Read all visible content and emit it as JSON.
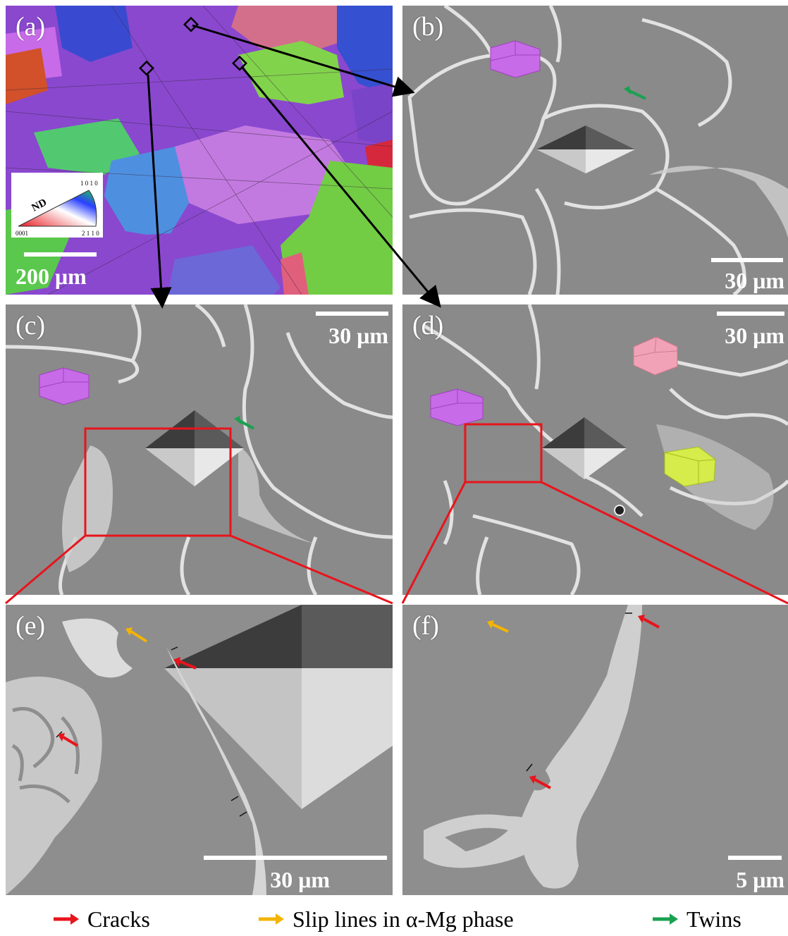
{
  "panels": {
    "a": {
      "label": "(a)",
      "scale": "200 μm"
    },
    "b": {
      "label": "(b)",
      "scale": "30 μm"
    },
    "c": {
      "label": "(c)",
      "scale": "30 μm"
    },
    "d": {
      "label": "(d)",
      "scale": "30 μm"
    },
    "e": {
      "label": "(e)",
      "scale": "30 μm"
    },
    "f": {
      "label": "(f)",
      "scale": "5 μm"
    }
  },
  "ipf_key": {
    "title": "ND",
    "corner_0001": "0001",
    "corner_2110": "2 1 1 0",
    "corner_1010": "1 0 1 0"
  },
  "legend": [
    {
      "label": "Cracks",
      "color": "#e8141c"
    },
    {
      "label": "Slip lines in α-Mg phase",
      "color": "#f4b400"
    },
    {
      "label": "Twins",
      "color": "#1aa150"
    }
  ],
  "colors": {
    "sem_gray": "#8a8a8a",
    "phase_white": "#e2e2e2",
    "zoom_box": "#e8141c",
    "crystal_magenta": "#c76be8",
    "crystal_pink": "#f1a2b6",
    "crystal_yellow": "#d6ec4a"
  }
}
